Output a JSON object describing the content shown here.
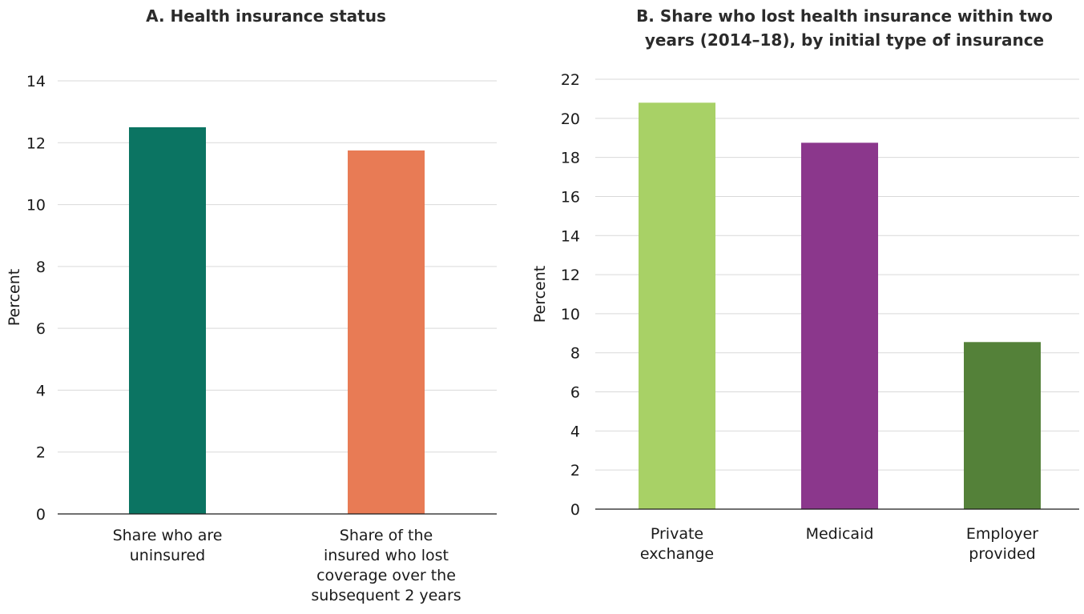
{
  "chart_data": [
    {
      "type": "bar",
      "title": [
        "A. Health insurance status"
      ],
      "ylabel": "Percent",
      "ylim": [
        0,
        14
      ],
      "yticks": [
        "0",
        "2",
        "4",
        "6",
        "8",
        "10",
        "12",
        "14"
      ],
      "grid": true,
      "categories": [
        [
          "Share who are",
          "uninsured"
        ],
        [
          "Share of the",
          "insured who lost",
          "coverage over the",
          "subsequent 2 years"
        ]
      ],
      "values": [
        12.5,
        11.75
      ],
      "colors": [
        "#0b7462",
        "#e87b55"
      ]
    },
    {
      "type": "bar",
      "title": [
        "B. Share who lost health insurance within two",
        "years (2014–18), by initial type of insurance"
      ],
      "ylabel": "Percent",
      "ylim": [
        0,
        22
      ],
      "yticks": [
        "0",
        "2",
        "4",
        "6",
        "8",
        "10",
        "12",
        "14",
        "16",
        "18",
        "20",
        "22"
      ],
      "grid": true,
      "categories": [
        [
          "Private",
          "exchange"
        ],
        [
          "Medicaid"
        ],
        [
          "Employer",
          "provided"
        ]
      ],
      "values": [
        20.8,
        18.75,
        8.55
      ],
      "colors": [
        "#a8d166",
        "#8b378c",
        "#548139"
      ]
    }
  ]
}
